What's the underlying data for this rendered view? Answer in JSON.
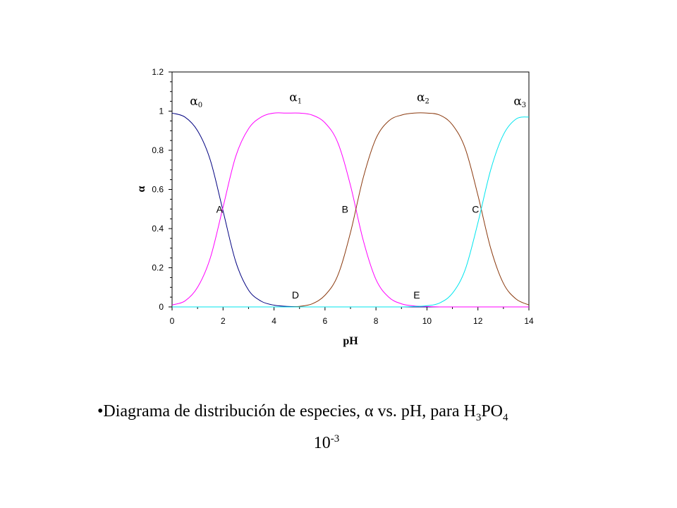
{
  "chart_data": {
    "type": "line",
    "xlabel": "pH",
    "ylabel": "α",
    "xlim": [
      0,
      14
    ],
    "ylim": [
      0,
      1.2
    ],
    "xticks": [
      "0",
      "2",
      "4",
      "6",
      "8",
      "10",
      "12",
      "14"
    ],
    "yticks": [
      "0",
      "0.2",
      "0.4",
      "0.6",
      "0.8",
      "1",
      "1.2"
    ],
    "grid": false,
    "x": [
      0,
      0.5,
      1,
      1.5,
      2,
      2.5,
      3,
      3.5,
      4,
      4.5,
      5,
      5.5,
      6,
      6.5,
      7,
      7.5,
      8,
      8.5,
      9,
      9.5,
      10,
      10.5,
      11,
      11.5,
      12,
      12.5,
      13,
      13.5,
      14
    ],
    "series": [
      {
        "name": "α0",
        "label_main": "α",
        "label_sub": "0",
        "color": "#000080",
        "values": [
          0.99,
          0.97,
          0.9,
          0.75,
          0.49,
          0.23,
          0.086,
          0.029,
          0.009,
          0.003,
          0.001,
          0,
          0,
          0,
          0,
          0,
          0,
          0,
          0,
          0,
          0,
          0,
          0,
          0,
          0,
          0,
          0,
          0,
          0
        ]
      },
      {
        "name": "α1",
        "label_main": "α",
        "label_sub": "1",
        "color": "#FF00FF",
        "values": [
          0.01,
          0.03,
          0.1,
          0.25,
          0.51,
          0.77,
          0.91,
          0.97,
          0.99,
          0.99,
          0.99,
          0.98,
          0.94,
          0.84,
          0.62,
          0.34,
          0.14,
          0.05,
          0.016,
          0.005,
          0.002,
          0,
          0,
          0,
          0,
          0,
          0,
          0,
          0
        ]
      },
      {
        "name": "α2",
        "label_main": "α",
        "label_sub": "2",
        "color": "#8B3A0F",
        "values": [
          0,
          0,
          0,
          0,
          0,
          0,
          0,
          0,
          0,
          0,
          0.003,
          0.016,
          0.06,
          0.16,
          0.38,
          0.66,
          0.86,
          0.95,
          0.98,
          0.99,
          0.99,
          0.98,
          0.93,
          0.81,
          0.57,
          0.3,
          0.12,
          0.04,
          0.01
        ]
      },
      {
        "name": "α3",
        "label_main": "α",
        "label_sub": "3",
        "color": "#00E5EE",
        "values": [
          0,
          0,
          0,
          0,
          0,
          0,
          0,
          0,
          0,
          0,
          0,
          0,
          0,
          0,
          0,
          0,
          0,
          0,
          0,
          0.002,
          0.006,
          0.02,
          0.07,
          0.19,
          0.43,
          0.7,
          0.88,
          0.96,
          0.97
        ]
      }
    ],
    "annotations": [
      {
        "text": "A",
        "x": 2.12,
        "y": 0.5
      },
      {
        "text": "B",
        "x": 7.21,
        "y": 0.5
      },
      {
        "text": "C",
        "x": 12.32,
        "y": 0.5
      },
      {
        "text": "D",
        "x": 4.7,
        "y": 0.0
      },
      {
        "text": "E",
        "x": 9.8,
        "y": 0.0
      }
    ]
  },
  "caption": {
    "bullet": "•",
    "text": "Diagrama de distribución de especies, α vs. pH, para H",
    "sub1": "3",
    "mid": "PO",
    "sub2": "4",
    "line2_base": "10",
    "line2_exp": "-3"
  }
}
